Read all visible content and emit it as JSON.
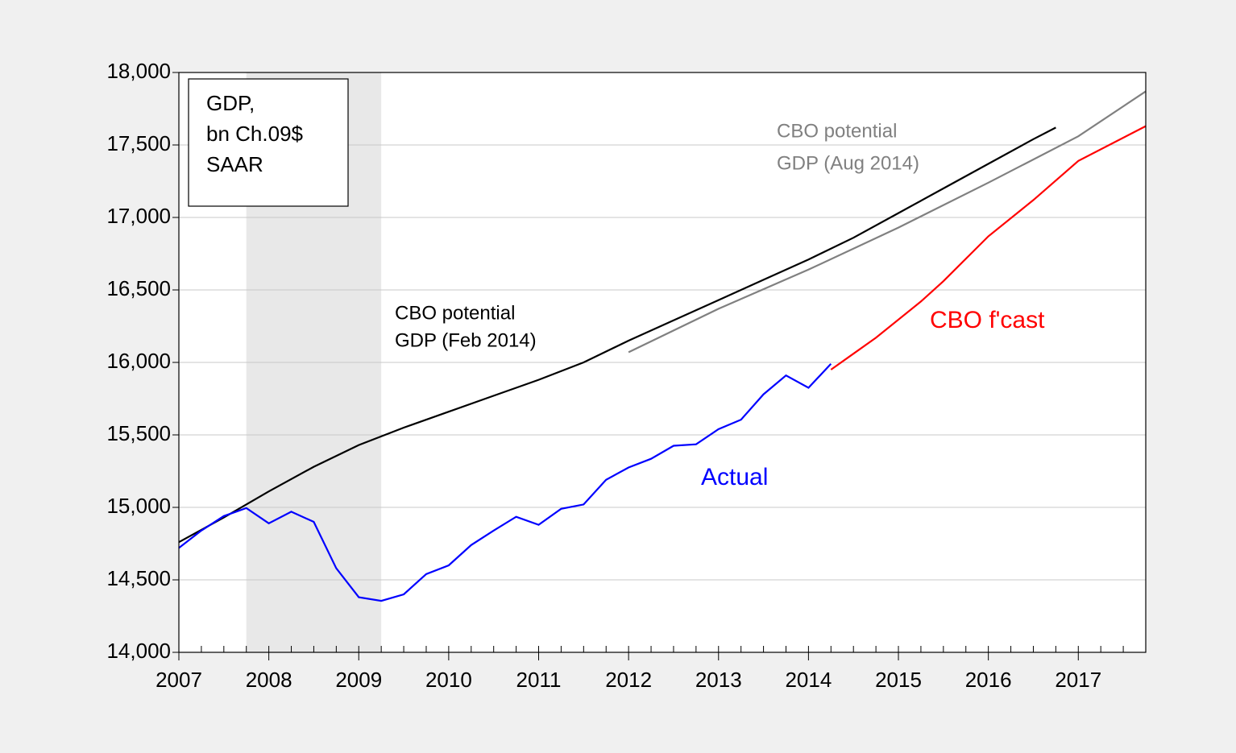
{
  "chart_data": {
    "type": "line",
    "box_text": [
      "GDP,",
      "bn Ch.09$",
      "SAAR"
    ],
    "xlim": [
      2007,
      2017.75
    ],
    "xticks": [
      2007,
      2008,
      2009,
      2010,
      2011,
      2012,
      2013,
      2014,
      2015,
      2016,
      2017
    ],
    "ylim": [
      14000,
      18000
    ],
    "yticks": [
      {
        "value": 14000,
        "label": "14,000"
      },
      {
        "value": 14500,
        "label": "14,500"
      },
      {
        "value": 15000,
        "label": "15,000"
      },
      {
        "value": 15500,
        "label": "15,500"
      },
      {
        "value": 16000,
        "label": "16,000"
      },
      {
        "value": 16500,
        "label": "16,500"
      },
      {
        "value": 17000,
        "label": "17,000"
      },
      {
        "value": 17500,
        "label": "17,500"
      },
      {
        "value": 18000,
        "label": "18,000"
      }
    ],
    "grid": true,
    "recession": [
      2007.75,
      2009.25
    ],
    "series": [
      {
        "name": [
          "CBO potential",
          "GDP (Feb 2014)"
        ],
        "color": "#000000",
        "x": [
          2007,
          2007.5,
          2008,
          2008.5,
          2009,
          2009.5,
          2010,
          2010.5,
          2011,
          2011.5,
          2012,
          2012.5,
          2013,
          2013.5,
          2014,
          2014.5,
          2015,
          2015.5,
          2016,
          2016.5,
          2016.75
        ],
        "values": [
          14760,
          14930,
          15110,
          15280,
          15430,
          15550,
          15660,
          15770,
          15880,
          16000,
          16150,
          16290,
          16430,
          16570,
          16710,
          16860,
          17030,
          17200,
          17370,
          17540,
          17620
        ]
      },
      {
        "name": [
          "CBO potential",
          "GDP (Aug 2014)"
        ],
        "color": "#808080",
        "x": [
          2012,
          2013,
          2014,
          2015,
          2016,
          2017,
          2017.75
        ],
        "values": [
          16070,
          16370,
          16640,
          16930,
          17240,
          17560,
          17870
        ]
      },
      {
        "name": [
          "Actual"
        ],
        "color": "#0000ff",
        "x": [
          2007,
          2007.25,
          2007.5,
          2007.75,
          2008,
          2008.25,
          2008.5,
          2008.75,
          2009,
          2009.25,
          2009.5,
          2009.75,
          2010,
          2010.25,
          2010.5,
          2010.75,
          2011,
          2011.25,
          2011.5,
          2011.75,
          2012,
          2012.25,
          2012.5,
          2012.75,
          2013,
          2013.25,
          2013.5,
          2013.75,
          2014,
          2014.25
        ],
        "values": [
          14720,
          14840,
          14940,
          14995,
          14890,
          14970,
          14900,
          14580,
          14380,
          14355,
          14400,
          14540,
          14600,
          14740,
          14840,
          14935,
          14880,
          14990,
          15020,
          15190,
          15275,
          15335,
          15425,
          15435,
          15540,
          15605,
          15780,
          15910,
          15825,
          15990
        ]
      },
      {
        "name": [
          "CBO f'cast"
        ],
        "color": "#ff0000",
        "x": [
          2014.25,
          2014.5,
          2014.75,
          2015.25,
          2015.5,
          2016,
          2016.5,
          2017,
          2017.75
        ],
        "values": [
          15950,
          16060,
          16170,
          16420,
          16560,
          16870,
          17120,
          17390,
          17630
        ]
      }
    ]
  }
}
